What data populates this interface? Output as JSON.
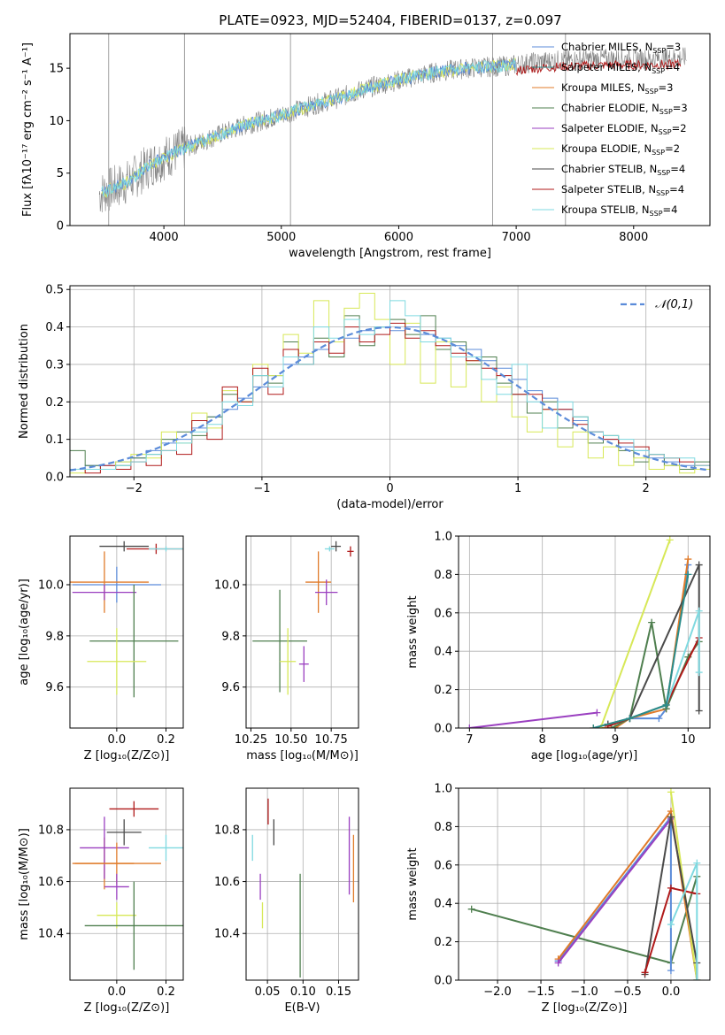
{
  "figure_title": "PLATE=0923, MJD=52404, FIBERID=0137, z=0.097",
  "colors": {
    "Chabrier MILES": "#5b8bd9",
    "Salpeter MILES": "#2a8c8a",
    "Kroupa MILES": "#e07b2a",
    "Chabrier ELODIE": "#4f7f4f",
    "Salpeter ELODIE": "#9a3fc0",
    "Kroupa ELODIE": "#d7e857",
    "Chabrier STELIB": "#4a4a4a",
    "Salpeter STELIB": "#b01a1a",
    "Kroupa STELIB": "#7fd9e0",
    "normal_curve": "#5b8bd9",
    "spectrum_data": "#808080"
  },
  "chart_data": [
    {
      "id": "spectrum",
      "type": "line",
      "title": "PLATE=0923, MJD=52404, FIBERID=0137, z=0.097",
      "xlabel": "wavelength [Angstrom, rest frame]",
      "ylabel": "Flux [fλ10⁻¹⁷ erg cm⁻² s⁻¹ A⁻¹]",
      "xlim": [
        3200,
        8650
      ],
      "ylim": [
        0,
        18.3
      ],
      "xticks": [
        4000,
        5000,
        6000,
        7000,
        8000
      ],
      "yticks": [
        0,
        5,
        10,
        15
      ],
      "grid": false,
      "legend_position": "top-right",
      "legend": [
        "Chabrier MILES, N_SSP=3",
        "Salpeter MILES, N_SSP=4",
        "Kroupa MILES, N_SSP=3",
        "Chabrier ELODIE, N_SSP=3",
        "Salpeter ELODIE, N_SSP=2",
        "Kroupa ELODIE, N_SSP=2",
        "Chabrier STELIB, N_SSP=4",
        "Salpeter STELIB, N_SSP=4",
        "Kroupa STELIB, N_SSP=4"
      ],
      "continuum": [
        [
          3450,
          3.0
        ],
        [
          3700,
          4.2
        ],
        [
          3900,
          5.9
        ],
        [
          4100,
          7.0
        ],
        [
          4300,
          7.9
        ],
        [
          4500,
          8.8
        ],
        [
          4700,
          9.6
        ],
        [
          4900,
          10.2
        ],
        [
          5100,
          10.9
        ],
        [
          5300,
          11.6
        ],
        [
          5500,
          12.2
        ],
        [
          5700,
          13.0
        ],
        [
          5900,
          13.6
        ],
        [
          6100,
          14.1
        ],
        [
          6300,
          14.6
        ],
        [
          6500,
          14.9
        ],
        [
          6700,
          15.1
        ],
        [
          6900,
          15.2
        ],
        [
          7100,
          15.5
        ],
        [
          7300,
          15.7
        ],
        [
          7500,
          15.8
        ],
        [
          7800,
          15.9
        ],
        [
          8100,
          15.9
        ],
        [
          8400,
          16.0
        ]
      ]
    },
    {
      "id": "residuals",
      "type": "area",
      "xlabel": "(data-model)/error",
      "ylabel": "Normed distribution",
      "xlim": [
        -2.5,
        2.5
      ],
      "ylim": [
        0,
        0.51
      ],
      "xticks": [
        -2,
        -1,
        0,
        1,
        2
      ],
      "yticks": [
        0.0,
        0.1,
        0.2,
        0.3,
        0.4,
        0.5
      ],
      "grid": true,
      "legend_position": "top-right",
      "legend": [
        "𝒩(0,1)"
      ],
      "series": [
        {
          "name": "Chabrier MILES",
          "values": [
            0.02,
            0.03,
            0.03,
            0.04,
            0.05,
            0.07,
            0.09,
            0.1,
            0.13,
            0.16,
            0.18,
            0.21,
            0.24,
            0.27,
            0.3,
            0.32,
            0.34,
            0.36,
            0.37,
            0.39,
            0.4,
            0.39,
            0.4,
            0.38,
            0.37,
            0.35,
            0.34,
            0.31,
            0.29,
            0.26,
            0.23,
            0.21,
            0.18,
            0.15,
            0.12,
            0.1,
            0.08,
            0.07,
            0.05,
            0.04,
            0.03,
            0.02
          ]
        },
        {
          "name": "Chabrier ELODIE",
          "values": [
            0.07,
            0.03,
            0.02,
            0.03,
            0.05,
            0.06,
            0.1,
            0.12,
            0.11,
            0.16,
            0.22,
            0.2,
            0.27,
            0.25,
            0.36,
            0.3,
            0.37,
            0.32,
            0.43,
            0.35,
            0.4,
            0.42,
            0.38,
            0.43,
            0.34,
            0.36,
            0.3,
            0.32,
            0.25,
            0.22,
            0.17,
            0.2,
            0.13,
            0.16,
            0.09,
            0.11,
            0.07,
            0.04,
            0.06,
            0.03,
            0.02,
            0.04
          ]
        },
        {
          "name": "Kroupa ELODIE",
          "values": [
            0.01,
            0.02,
            0.02,
            0.04,
            0.06,
            0.05,
            0.12,
            0.09,
            0.17,
            0.13,
            0.23,
            0.2,
            0.3,
            0.27,
            0.38,
            0.33,
            0.47,
            0.36,
            0.45,
            0.49,
            0.42,
            0.3,
            0.41,
            0.25,
            0.36,
            0.24,
            0.31,
            0.2,
            0.24,
            0.16,
            0.12,
            0.18,
            0.08,
            0.12,
            0.05,
            0.08,
            0.03,
            0.05,
            0.02,
            0.03,
            0.01,
            0.02
          ]
        },
        {
          "name": "Salpeter STELIB",
          "values": [
            0.02,
            0.01,
            0.03,
            0.02,
            0.04,
            0.03,
            0.07,
            0.06,
            0.15,
            0.1,
            0.24,
            0.2,
            0.29,
            0.22,
            0.34,
            0.3,
            0.36,
            0.33,
            0.4,
            0.36,
            0.38,
            0.41,
            0.37,
            0.39,
            0.35,
            0.33,
            0.31,
            0.29,
            0.27,
            0.22,
            0.22,
            0.18,
            0.18,
            0.14,
            0.12,
            0.1,
            0.09,
            0.08,
            0.06,
            0.05,
            0.04,
            0.03
          ]
        },
        {
          "name": "Kroupa STELIB",
          "values": [
            0.02,
            0.02,
            0.02,
            0.03,
            0.04,
            0.06,
            0.07,
            0.09,
            0.12,
            0.14,
            0.2,
            0.19,
            0.27,
            0.24,
            0.32,
            0.3,
            0.4,
            0.37,
            0.42,
            0.38,
            0.4,
            0.47,
            0.43,
            0.36,
            0.37,
            0.32,
            0.32,
            0.26,
            0.22,
            0.3,
            0.2,
            0.13,
            0.2,
            0.16,
            0.12,
            0.11,
            0.1,
            0.07,
            0.06,
            0.05,
            0.05,
            0.03
          ]
        }
      ],
      "normal_curve": "N(0,1)"
    },
    {
      "id": "age_vs_Z",
      "type": "scatter",
      "xlabel": "Z [log₁₀(Z/Z⊙)]",
      "ylabel": "age  [log₁₀(age/yr)]",
      "xlim": [
        -0.19,
        0.27
      ],
      "ylim": [
        9.44,
        10.19
      ],
      "xticks": [
        0.0,
        0.2
      ],
      "yticks": [
        9.6,
        9.8,
        10.0
      ],
      "grid": true,
      "points": [
        {
          "s": "Chabrier MILES",
          "x": 0.0,
          "xe": 0.18,
          "y": 10.0,
          "ye": 0.07
        },
        {
          "s": "Kroupa MILES",
          "x": -0.05,
          "xe": 0.18,
          "y": 10.01,
          "ye": 0.12
        },
        {
          "s": "Salpeter ELODIE",
          "x": -0.05,
          "xe": 0.13,
          "y": 9.97,
          "ye": 0.03
        },
        {
          "s": "Chabrier ELODIE",
          "x": 0.07,
          "xe": 0.18,
          "y": 9.78,
          "ye": 0.22
        },
        {
          "s": "Kroupa ELODIE",
          "x": 0.0,
          "xe": 0.12,
          "y": 9.7,
          "ye": 0.13
        },
        {
          "s": "Salpeter STELIB",
          "x": 0.16,
          "xe": 0.12,
          "y": 10.14,
          "ye": 0.02
        },
        {
          "s": "Chabrier STELIB",
          "x": 0.03,
          "xe": 0.1,
          "y": 10.15,
          "ye": 0.02
        },
        {
          "s": "Kroupa STELIB",
          "x": 0.2,
          "xe": 0.07,
          "y": 10.14,
          "ye": 0.01
        }
      ]
    },
    {
      "id": "age_vs_mass",
      "type": "scatter",
      "xlabel": "mass [log₁₀(M/M⊙)]",
      "ylabel": "",
      "xlim": [
        10.22,
        10.92
      ],
      "ylim": [
        9.44,
        10.19
      ],
      "xticks": [
        10.25,
        10.5,
        10.75
      ],
      "yticks": [
        9.6,
        9.8,
        10.0
      ],
      "grid": true,
      "points": [
        {
          "s": "Kroupa MILES",
          "x": 10.67,
          "xe": 0.08,
          "y": 10.01,
          "ye": 0.12
        },
        {
          "s": "Salpeter ELODIE",
          "x": 10.72,
          "xe": 0.07,
          "y": 9.97,
          "ye": 0.05
        },
        {
          "s": "Chabrier ELODIE",
          "x": 10.43,
          "xe": 0.17,
          "y": 9.78,
          "ye": 0.2
        },
        {
          "s": "Salpeter ELODIE b",
          "x": 10.58,
          "xe": 0.03,
          "y": 9.69,
          "ye": 0.07
        },
        {
          "s": "Kroupa ELODIE",
          "x": 10.48,
          "xe": 0.05,
          "y": 9.7,
          "ye": 0.13
        },
        {
          "s": "Chabrier STELIB",
          "x": 10.78,
          "xe": 0.03,
          "y": 10.15,
          "ye": 0.02
        },
        {
          "s": "Salpeter STELIB",
          "x": 10.87,
          "xe": 0.02,
          "y": 10.13,
          "ye": 0.02
        },
        {
          "s": "Kroupa STELIB",
          "x": 10.74,
          "xe": 0.03,
          "y": 10.14,
          "ye": 0.01
        }
      ]
    },
    {
      "id": "weight_vs_age",
      "type": "line",
      "xlabel": "age  [log₁₀(age/yr)]",
      "ylabel": "mass weight",
      "xlim": [
        6.85,
        10.3
      ],
      "ylim": [
        0,
        1
      ],
      "xticks": [
        7,
        8,
        9,
        10
      ],
      "yticks": [
        0.0,
        0.2,
        0.4,
        0.6,
        0.8,
        1.0
      ],
      "grid": true,
      "series": [
        {
          "name": "Chabrier MILES",
          "x": [
            8.9,
            9.2,
            9.6,
            9.7,
            10.0
          ],
          "y": [
            0.02,
            0.05,
            0.05,
            0.1,
            0.85
          ]
        },
        {
          "name": "Kroupa MILES",
          "x": [
            8.7,
            9.0,
            9.2,
            9.7,
            10.0
          ],
          "y": [
            0.0,
            0.0,
            0.05,
            0.1,
            0.88
          ]
        },
        {
          "name": "Chabrier ELODIE",
          "x": [
            8.95,
            9.2,
            9.5,
            9.7,
            10.0,
            10.15
          ],
          "y": [
            0.0,
            0.05,
            0.55,
            0.1,
            0.37,
            0.45
          ]
        },
        {
          "name": "Kroupa ELODIE",
          "x": [
            8.8,
            9.75
          ],
          "y": [
            0.0,
            0.98
          ]
        },
        {
          "name": "Salpeter ELODIE",
          "x": [
            7.0,
            8.75
          ],
          "y": [
            0.0,
            0.08
          ]
        },
        {
          "name": "Chabrier STELIB",
          "x": [
            8.9,
            9.2,
            10.15,
            10.15
          ],
          "y": [
            0.02,
            0.05,
            0.85,
            0.09
          ]
        },
        {
          "name": "Salpeter STELIB",
          "x": [
            8.9,
            9.2,
            9.7,
            10.15
          ],
          "y": [
            0.01,
            0.05,
            0.12,
            0.47
          ]
        },
        {
          "name": "Kroupa STELIB",
          "x": [
            9.2,
            9.7,
            10.15,
            10.15
          ],
          "y": [
            0.05,
            0.12,
            0.61,
            0.29
          ]
        },
        {
          "name": "Salpeter MILES",
          "x": [
            8.7,
            9.2,
            9.7,
            10.0
          ],
          "y": [
            0.0,
            0.05,
            0.12,
            0.8
          ]
        }
      ]
    },
    {
      "id": "mass_vs_Z",
      "type": "scatter",
      "xlabel": "Z [log₁₀(Z/Z⊙)]",
      "ylabel": "mass [log₁₀(M/M⊙)]",
      "xlim": [
        -0.19,
        0.27
      ],
      "ylim": [
        10.22,
        10.96
      ],
      "xticks": [
        0.0,
        0.2
      ],
      "yticks": [
        10.4,
        10.6,
        10.8
      ],
      "grid": true,
      "points": [
        {
          "s": "Salpeter STELIB",
          "x": 0.07,
          "xe": 0.1,
          "y": 10.88,
          "ye": 0.03
        },
        {
          "s": "Chabrier STELIB",
          "x": 0.03,
          "xe": 0.07,
          "y": 10.79,
          "ye": 0.05
        },
        {
          "s": "Kroupa STELIB",
          "x": 0.2,
          "xe": 0.07,
          "y": 10.73,
          "ye": 0.05
        },
        {
          "s": "Kroupa MILES",
          "x": -0.05,
          "xe": 0.12,
          "y": 10.67,
          "ye": 0.1
        },
        {
          "s": "Salpeter ELODIE",
          "x": -0.05,
          "xe": 0.1,
          "y": 10.73,
          "ye": 0.12
        },
        {
          "s": "Kroupa MILES b",
          "x": 0.0,
          "xe": 0.18,
          "y": 10.67,
          "ye": 0.08
        },
        {
          "s": "Salpeter ELODIE b",
          "x": 0.0,
          "xe": 0.05,
          "y": 10.58,
          "ye": 0.05
        },
        {
          "s": "Kroupa ELODIE",
          "x": 0.0,
          "xe": 0.08,
          "y": 10.47,
          "ye": 0.05
        },
        {
          "s": "Chabrier ELODIE",
          "x": 0.07,
          "xe": 0.2,
          "y": 10.43,
          "ye": 0.17
        }
      ]
    },
    {
      "id": "mass_vs_ebv",
      "type": "scatter",
      "xlabel": "E(B-V)",
      "ylabel": "",
      "xlim": [
        0.02,
        0.178
      ],
      "ylim": [
        10.22,
        10.96
      ],
      "xticks": [
        0.05,
        0.1,
        0.15
      ],
      "yticks": [
        10.4,
        10.6,
        10.8
      ],
      "grid": true,
      "points": [
        {
          "s": "Salpeter STELIB",
          "x": 0.051,
          "y": 10.87,
          "ye": 0.05
        },
        {
          "s": "Chabrier STELIB",
          "x": 0.059,
          "y": 10.79,
          "ye": 0.05
        },
        {
          "s": "Kroupa STELIB",
          "x": 0.029,
          "y": 10.73,
          "ye": 0.05
        },
        {
          "s": "Salpeter ELODIE",
          "x": 0.04,
          "y": 10.58,
          "ye": 0.05
        },
        {
          "s": "Kroupa ELODIE",
          "x": 0.043,
          "y": 10.47,
          "ye": 0.05
        },
        {
          "s": "Chabrier ELODIE",
          "x": 0.096,
          "y": 10.43,
          "ye": 0.2
        },
        {
          "s": "Salpeter ELODIE b",
          "x": 0.165,
          "y": 10.7,
          "ye": 0.15
        },
        {
          "s": "Kroupa MILES",
          "x": 0.171,
          "y": 10.65,
          "ye": 0.13
        }
      ]
    },
    {
      "id": "weight_vs_Z",
      "type": "line",
      "xlabel": "Z [log₁₀(Z/Z⊙)]",
      "ylabel": "mass weight",
      "xlim": [
        -2.45,
        0.45
      ],
      "ylim": [
        0,
        1
      ],
      "xticks": [
        -2.0,
        -1.5,
        -1.0,
        -0.5,
        0.0
      ],
      "yticks": [
        0.0,
        0.2,
        0.4,
        0.6,
        0.8,
        1.0
      ],
      "grid": true,
      "series": [
        {
          "name": "Chabrier ELODIE",
          "x": [
            -2.3,
            0.0,
            0.3
          ],
          "y": [
            0.37,
            0.09,
            0.54
          ]
        },
        {
          "name": "Chabrier MILES",
          "x": [
            -1.3,
            0.0,
            0.0
          ],
          "y": [
            0.1,
            0.85,
            0.05
          ]
        },
        {
          "name": "Kroupa MILES",
          "x": [
            -1.3,
            0.0,
            0.3
          ],
          "y": [
            0.11,
            0.88,
            0.0
          ]
        },
        {
          "name": "Salpeter ELODIE",
          "x": [
            -1.3,
            0.0
          ],
          "y": [
            0.09,
            0.84
          ]
        },
        {
          "name": "Kroupa ELODIE",
          "x": [
            0.0,
            0.3
          ],
          "y": [
            0.98,
            0.0
          ]
        },
        {
          "name": "Chabrier STELIB",
          "x": [
            -0.3,
            0.0,
            0.3,
            0.3
          ],
          "y": [
            0.03,
            0.85,
            0.09,
            0.0
          ]
        },
        {
          "name": "Salpeter STELIB",
          "x": [
            -0.3,
            0.0,
            0.3
          ],
          "y": [
            0.04,
            0.48,
            0.45
          ]
        },
        {
          "name": "Kroupa STELIB",
          "x": [
            0.0,
            0.3,
            0.3
          ],
          "y": [
            0.29,
            0.61,
            0.0
          ]
        }
      ]
    }
  ]
}
